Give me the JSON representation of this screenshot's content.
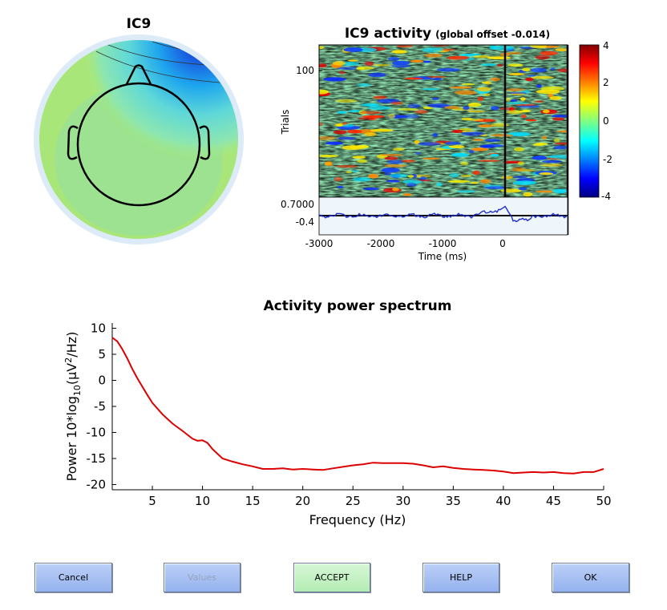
{
  "topo": {
    "title": "IC9"
  },
  "erpimage": {
    "title": "IC9 activity",
    "subtitle": "(global offset -0.014)",
    "ylabel": "Trials",
    "ytick": "100",
    "xlabel": "Time (ms)",
    "xticks": [
      "-3000",
      "-2000",
      "-1000",
      "0"
    ],
    "erp_ticks": [
      "0.7000",
      "-0.4"
    ],
    "colorbar_ticks": [
      "4",
      "2",
      "0",
      "-2",
      "-4"
    ]
  },
  "spectrum": {
    "title": "Activity power spectrum",
    "xlabel": "Frequency (Hz)",
    "ylabel_prefix": "Power 10*log",
    "ylabel_sub": "10",
    "ylabel_mid": "(μV",
    "ylabel_sup": "2",
    "ylabel_suffix": "/Hz)"
  },
  "chart_data": {
    "type": "line",
    "title": "Activity power spectrum",
    "xlabel": "Frequency (Hz)",
    "ylabel": "Power 10*log10(μV2/Hz)",
    "xlim": [
      1,
      50
    ],
    "ylim": [
      -21,
      11
    ],
    "xticks": [
      5,
      10,
      15,
      20,
      25,
      30,
      35,
      40,
      45,
      50
    ],
    "yticks": [
      10,
      5,
      0,
      -5,
      -10,
      -15,
      -20
    ],
    "color": "#dd0000",
    "x": [
      1,
      1.5,
      2,
      2.5,
      3,
      3.5,
      4,
      4.5,
      5,
      6,
      7,
      8,
      9,
      9.5,
      10,
      10.5,
      11,
      12,
      13,
      14,
      15,
      16,
      17,
      18,
      19,
      20,
      21,
      22,
      23,
      24,
      25,
      26,
      27,
      28,
      29,
      30,
      31,
      32,
      33,
      34,
      35,
      36,
      37,
      38,
      39,
      40,
      41,
      42,
      43,
      44,
      45,
      46,
      47,
      48,
      49,
      50
    ],
    "y": [
      8.2,
      7.5,
      6,
      4.2,
      2.2,
      0.4,
      -1.2,
      -2.8,
      -4.3,
      -6.5,
      -8.3,
      -9.7,
      -11.2,
      -11.6,
      -11.5,
      -12,
      -13.2,
      -15,
      -15.6,
      -16.1,
      -16.5,
      -17,
      -17,
      -16.9,
      -17.1,
      -17,
      -17.1,
      -17.2,
      -16.9,
      -16.6,
      -16.3,
      -16.1,
      -15.8,
      -15.9,
      -15.9,
      -15.9,
      -16,
      -16.3,
      -16.7,
      -16.5,
      -16.8,
      -17,
      -17.1,
      -17.2,
      -17.3,
      -17.5,
      -17.8,
      -17.7,
      -17.6,
      -17.7,
      -17.6,
      -17.8,
      -17.9,
      -17.6,
      -17.6,
      -17
    ]
  },
  "buttons": {
    "cancel": "Cancel",
    "values": "Values",
    "accept": "ACCEPT",
    "help": "HELP",
    "ok": "OK"
  },
  "colors": {
    "button_blue": "#a9c1f4",
    "button_green": "#c6f2c6",
    "spectrum_line": "#dd0000",
    "erp_line": "#1f2fc8"
  }
}
